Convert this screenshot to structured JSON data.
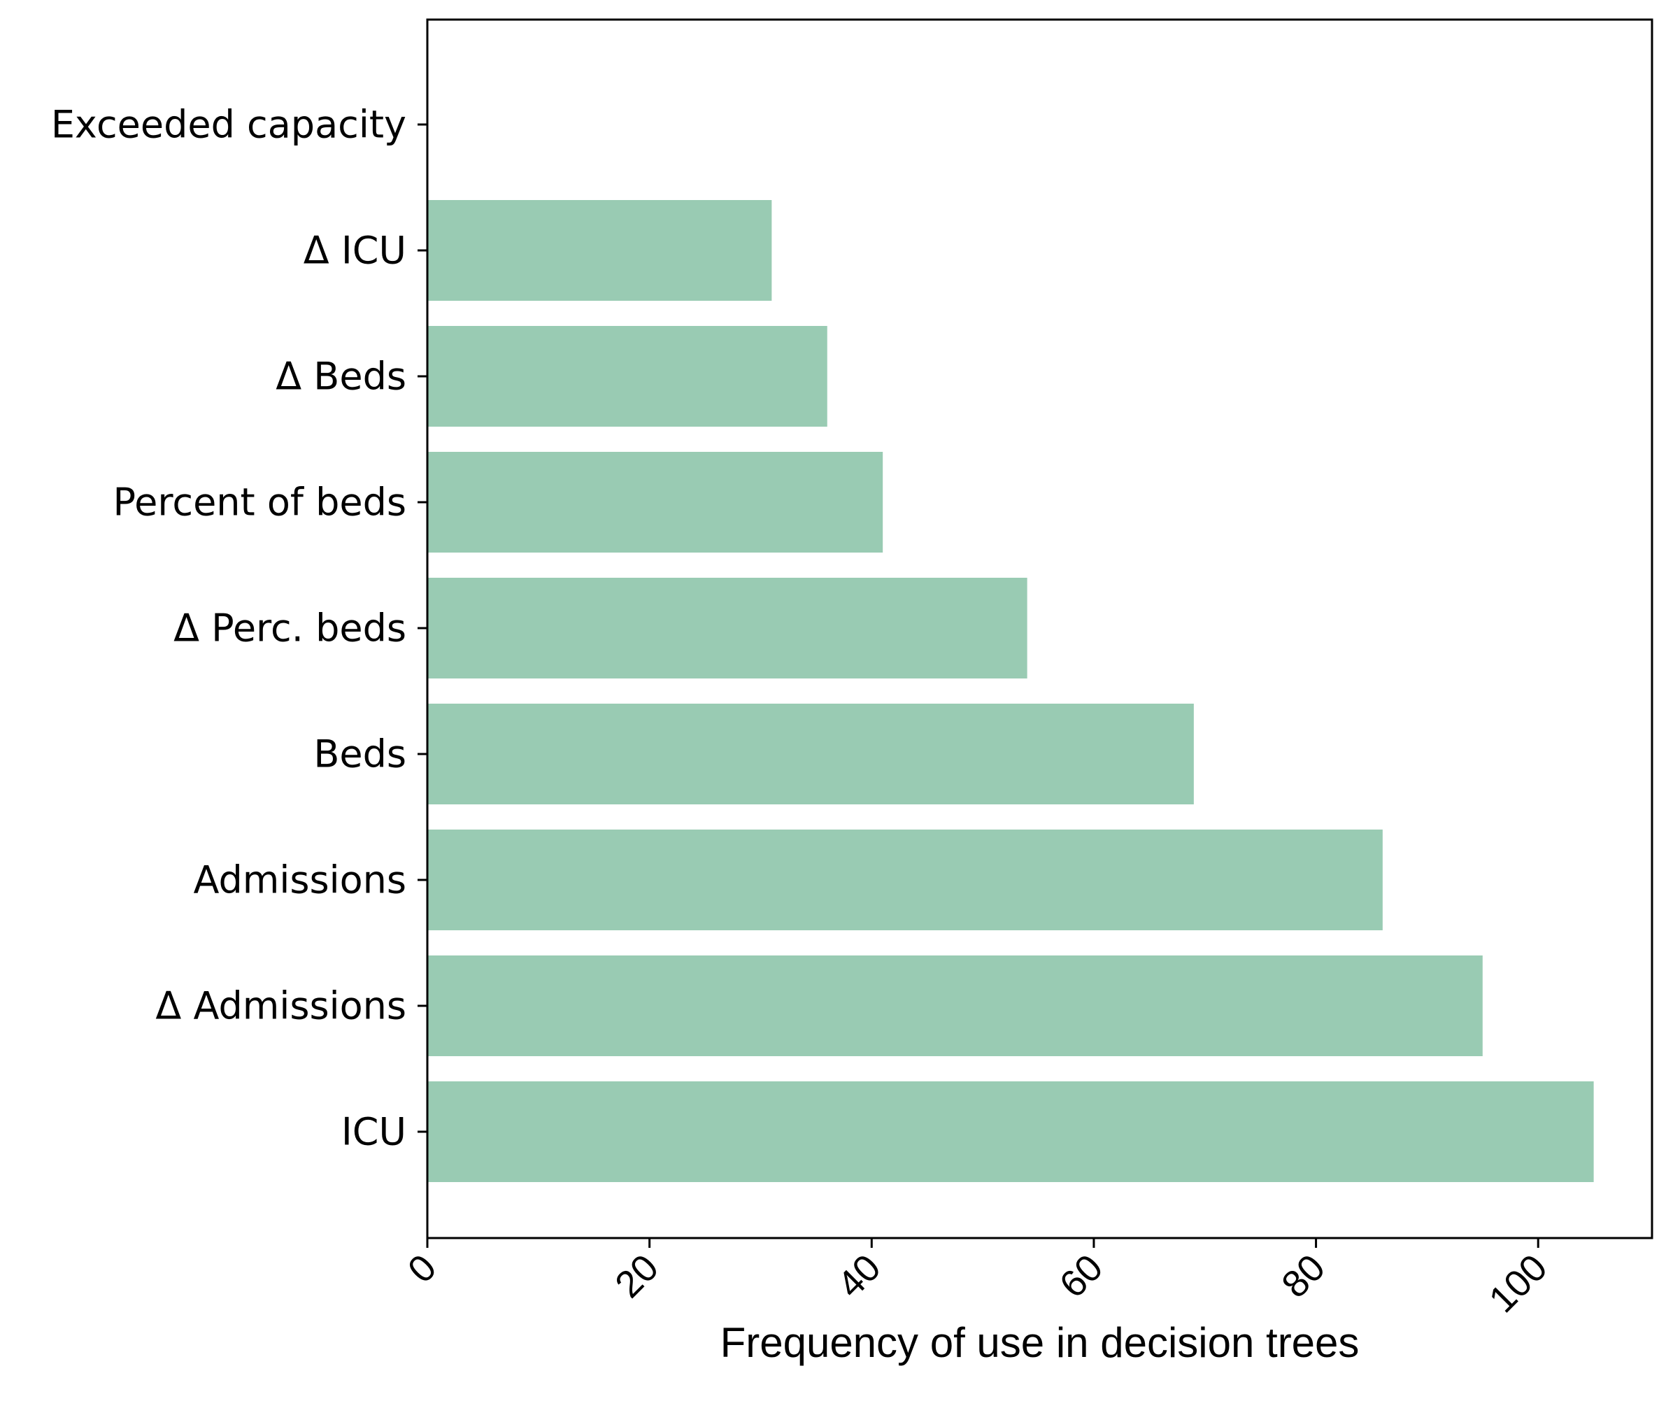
{
  "chart_data": {
    "type": "bar",
    "orientation": "horizontal",
    "categories": [
      "ICU",
      "Δ Admissions",
      "Admissions",
      "Beds",
      "Δ Perc. beds",
      "Percent of beds",
      "Δ Beds",
      "Δ ICU",
      "Exceeded capacity"
    ],
    "values": [
      105,
      95,
      86,
      69,
      54,
      41,
      36,
      31,
      0
    ],
    "title": "",
    "xlabel": "Frequency of use in decision trees",
    "ylabel": "",
    "xlim": [
      0,
      110.25
    ],
    "xticks": [
      0,
      20,
      40,
      60,
      80,
      100
    ],
    "xtick_labels": [
      "0",
      "20",
      "40",
      "60",
      "80",
      "100"
    ],
    "grid": false,
    "bar_color": "#99cbb3"
  }
}
